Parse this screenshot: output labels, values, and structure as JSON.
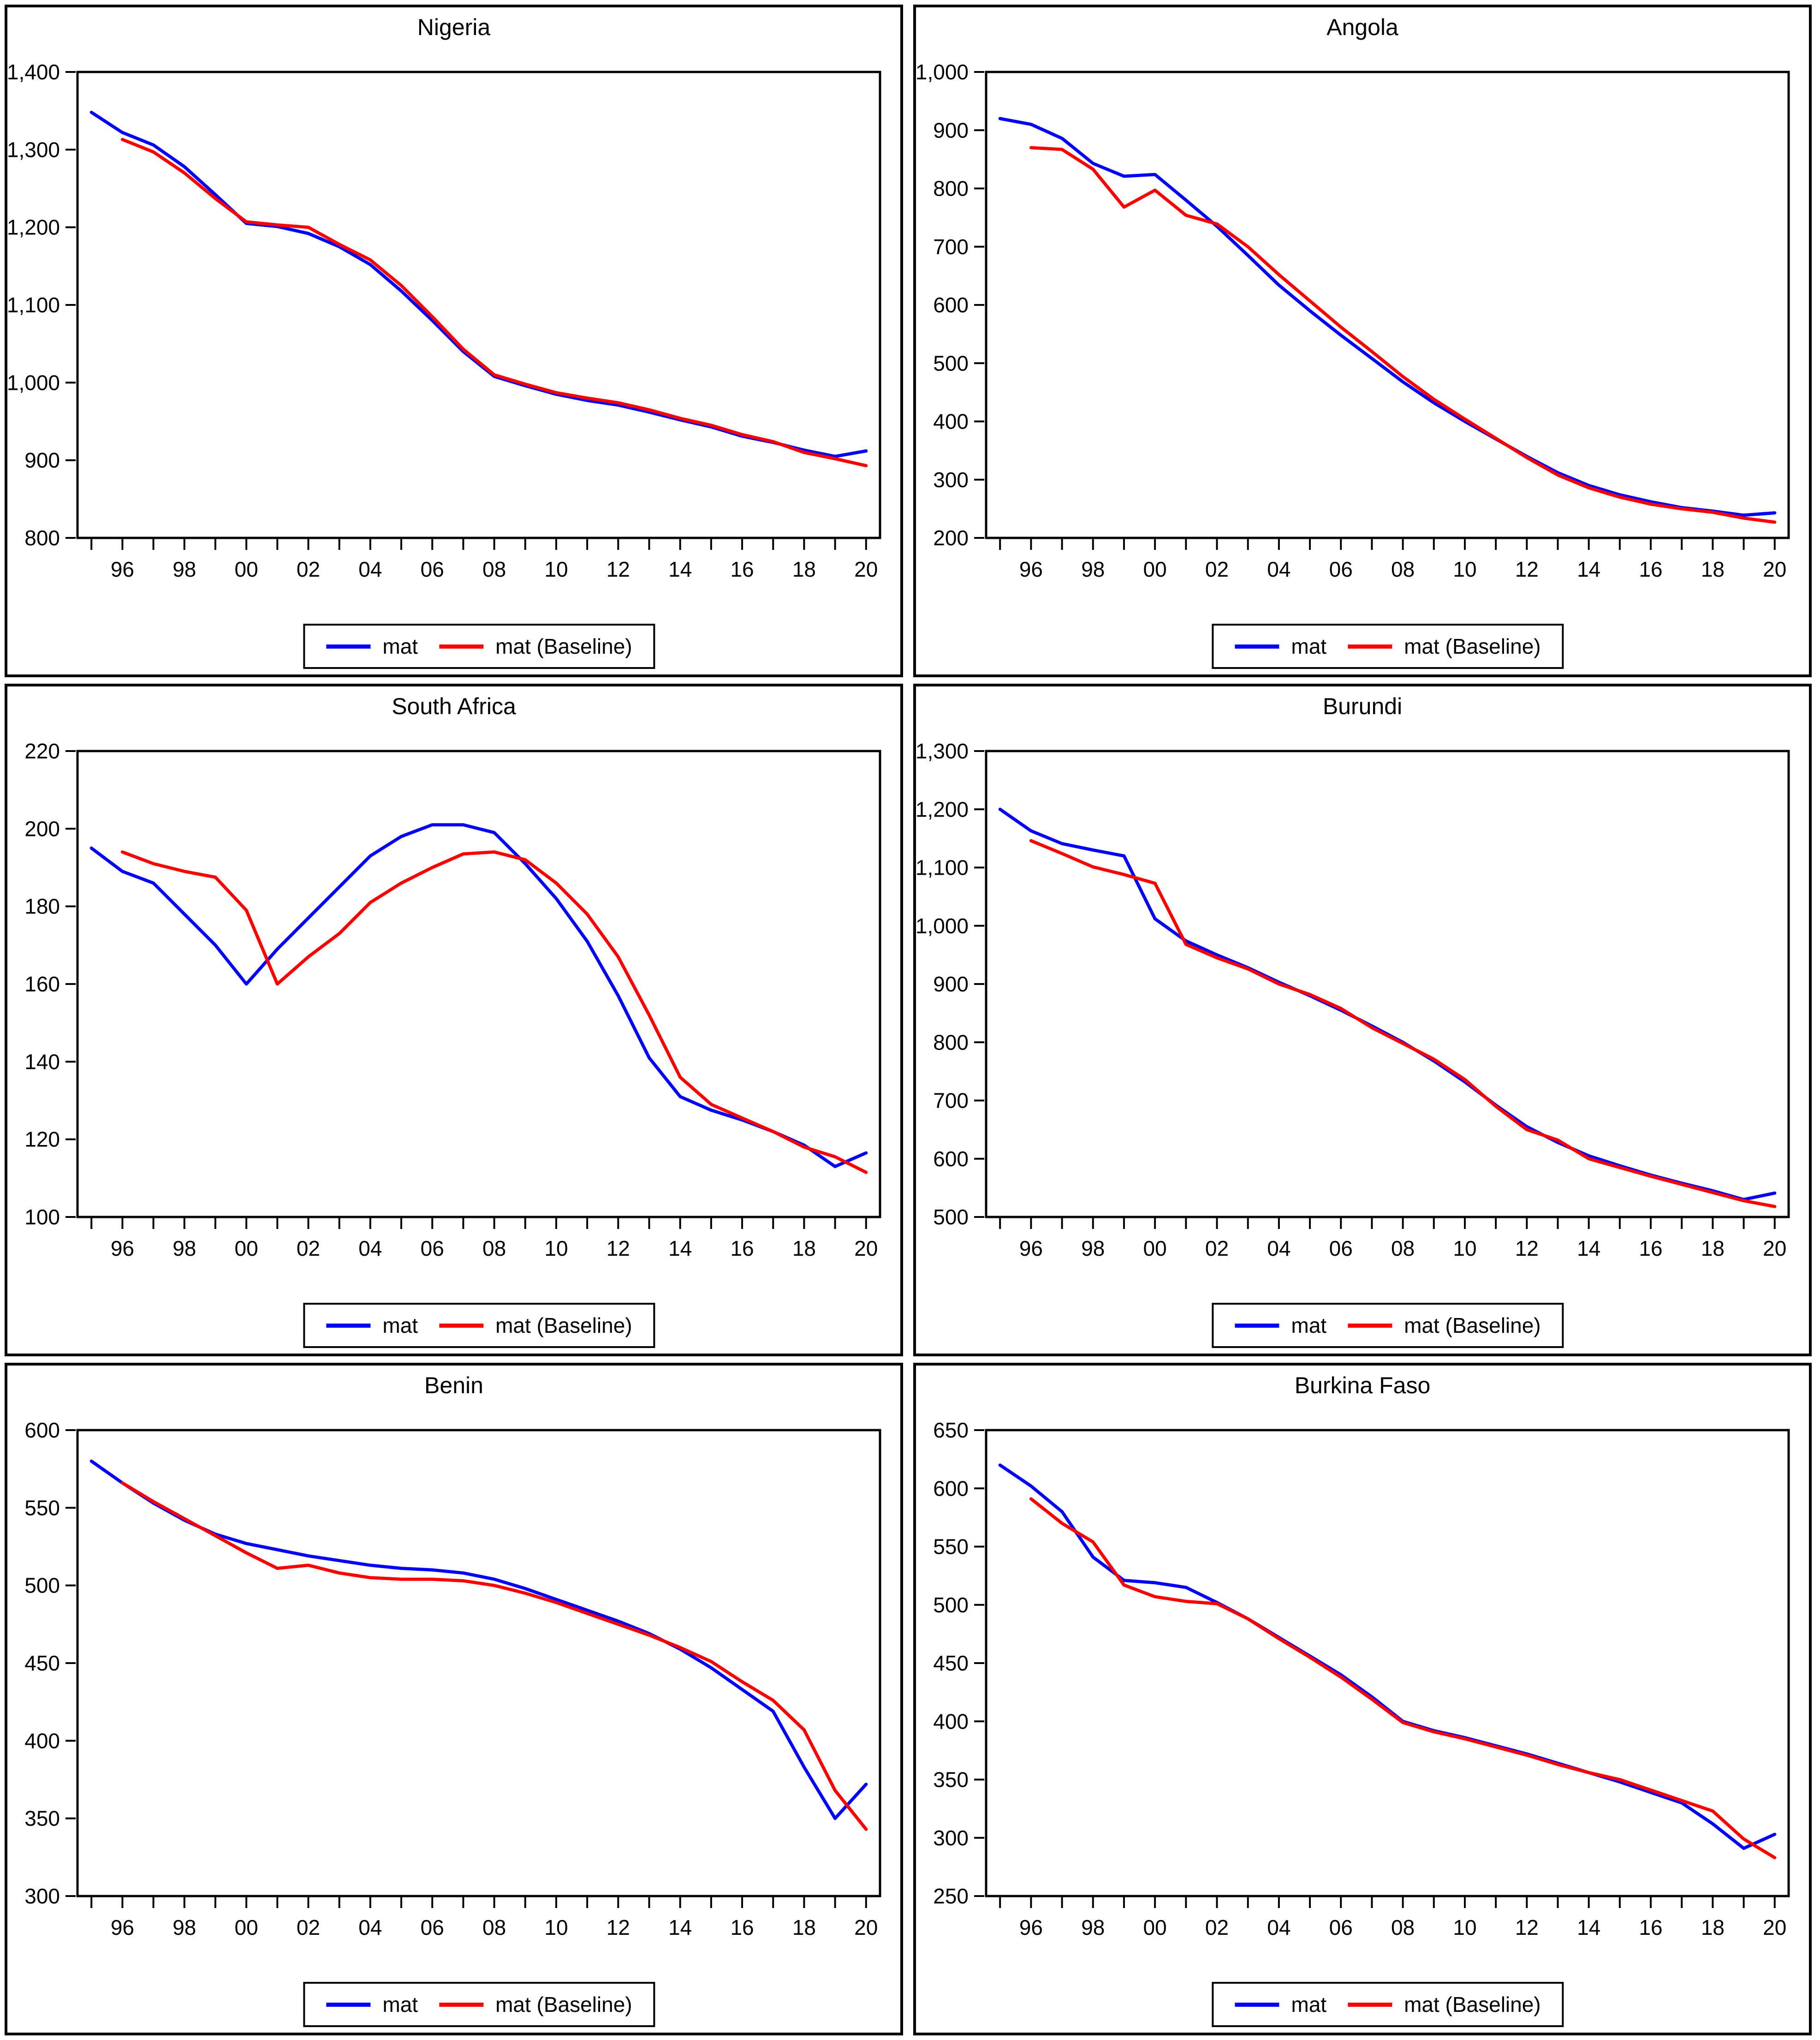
{
  "colors": {
    "mat": "#0000ff",
    "baseline": "#ff0000",
    "axis": "#000000",
    "background": "#ffffff"
  },
  "x_axis": {
    "start_year": 1995,
    "end_year": 2020,
    "range": [
      1994.55,
      2020.45
    ],
    "labeled_years": [
      1996,
      1998,
      2000,
      2002,
      2004,
      2006,
      2008,
      2010,
      2012,
      2014,
      2016,
      2018,
      2020
    ],
    "tick_labels": [
      "96",
      "98",
      "00",
      "02",
      "04",
      "06",
      "08",
      "10",
      "12",
      "14",
      "16",
      "18",
      "20"
    ]
  },
  "chart_data": [
    {
      "type": "line",
      "title": "Nigeria",
      "ylim": [
        800,
        1400
      ],
      "ystep": 100,
      "ytick_labels": [
        "1,400",
        "1,300",
        "1,200",
        "1,100",
        "1,000",
        "900",
        "800"
      ],
      "legend_position": "bottom-center",
      "grid": false,
      "series": [
        {
          "name": "mat",
          "color": "#0000ff",
          "start_year": 1995,
          "values": [
            1348,
            1322,
            1306,
            1278,
            1242,
            1205,
            1201,
            1192,
            1175,
            1152,
            1118,
            1080,
            1040,
            1008,
            996,
            985,
            977,
            971,
            962,
            952,
            943,
            931,
            923,
            913,
            905,
            912
          ]
        },
        {
          "name": "mat (Baseline)",
          "color": "#ff0000",
          "start_year": 1996,
          "values": [
            1313,
            1297,
            1270,
            1237,
            1207,
            1203,
            1200,
            1178,
            1158,
            1125,
            1085,
            1043,
            1010,
            998,
            987,
            980,
            974,
            965,
            954,
            945,
            933,
            924,
            910,
            902,
            893
          ]
        }
      ]
    },
    {
      "type": "line",
      "title": "Angola",
      "ylim": [
        200,
        1000
      ],
      "ystep": 100,
      "ytick_labels": [
        "1,000",
        "900",
        "800",
        "700",
        "600",
        "500",
        "400",
        "300",
        "200"
      ],
      "legend_position": "bottom-center",
      "grid": false,
      "series": [
        {
          "name": "mat",
          "color": "#0000ff",
          "start_year": 1995,
          "values": [
            920,
            910,
            886,
            843,
            821,
            824,
            780,
            735,
            685,
            634,
            590,
            548,
            508,
            468,
            432,
            400,
            370,
            340,
            312,
            290,
            274,
            262,
            252,
            246,
            239,
            243
          ]
        },
        {
          "name": "mat (Baseline)",
          "color": "#ff0000",
          "start_year": 1996,
          "values": [
            870,
            867,
            833,
            768,
            797,
            754,
            739,
            700,
            652,
            607,
            562,
            520,
            477,
            438,
            404,
            371,
            338,
            308,
            286,
            270,
            258,
            250,
            244,
            234,
            227
          ]
        }
      ]
    },
    {
      "type": "line",
      "title": "South Africa",
      "ylim": [
        100,
        220
      ],
      "ystep": 20,
      "ytick_labels": [
        "220",
        "200",
        "180",
        "160",
        "140",
        "120",
        "100"
      ],
      "legend_position": "bottom-center",
      "grid": false,
      "series": [
        {
          "name": "mat",
          "color": "#0000ff",
          "start_year": 1995,
          "values": [
            195,
            189,
            186,
            178,
            170,
            160,
            169,
            177,
            185,
            193,
            198,
            201,
            201,
            199,
            191,
            182,
            171,
            157,
            141,
            131,
            127.5,
            125,
            122,
            118.5,
            113,
            116.5
          ]
        },
        {
          "name": "mat (Baseline)",
          "color": "#ff0000",
          "start_year": 1996,
          "values": [
            194,
            191,
            189,
            187.5,
            179,
            160,
            167,
            173,
            181,
            186,
            190,
            193.5,
            194,
            192,
            186,
            178,
            167,
            152,
            136,
            129,
            125.5,
            122,
            118,
            115.5,
            111.5
          ]
        }
      ]
    },
    {
      "type": "line",
      "title": "Burundi",
      "ylim": [
        500,
        1300
      ],
      "ystep": 100,
      "ytick_labels": [
        "1,300",
        "1,200",
        "1,100",
        "1,000",
        "900",
        "800",
        "700",
        "600",
        "500"
      ],
      "legend_position": "bottom-center",
      "grid": false,
      "series": [
        {
          "name": "mat",
          "color": "#0000ff",
          "start_year": 1995,
          "values": [
            1200,
            1163,
            1141,
            1130,
            1120,
            1012,
            974,
            950,
            928,
            903,
            880,
            855,
            828,
            800,
            768,
            732,
            692,
            655,
            628,
            605,
            588,
            572,
            558,
            545,
            530,
            541
          ]
        },
        {
          "name": "mat (Baseline)",
          "color": "#ff0000",
          "start_year": 1996,
          "values": [
            1146,
            1124,
            1101,
            1088,
            1073,
            968,
            945,
            926,
            900,
            882,
            858,
            825,
            798,
            771,
            736,
            690,
            650,
            632,
            600,
            585,
            570,
            556,
            542,
            528,
            518
          ]
        }
      ]
    },
    {
      "type": "line",
      "title": "Benin",
      "ylim": [
        300,
        600
      ],
      "ystep": 50,
      "ytick_labels": [
        "600",
        "550",
        "500",
        "450",
        "400",
        "350",
        "300"
      ],
      "legend_position": "bottom-center",
      "grid": false,
      "series": [
        {
          "name": "mat",
          "color": "#0000ff",
          "start_year": 1995,
          "values": [
            580,
            566,
            553,
            542,
            533,
            527,
            523,
            519,
            516,
            513,
            511,
            510,
            508,
            504,
            498,
            491,
            484,
            477,
            469,
            459,
            447,
            433,
            419,
            383,
            350,
            372
          ]
        },
        {
          "name": "mat (Baseline)",
          "color": "#ff0000",
          "start_year": 1996,
          "values": [
            566,
            554,
            543,
            532,
            521,
            511,
            513,
            508,
            505,
            504,
            504,
            503,
            500,
            495,
            489,
            482,
            475,
            468,
            460,
            451,
            438,
            426,
            407,
            368,
            343
          ]
        }
      ]
    },
    {
      "type": "line",
      "title": "Burkina Faso",
      "ylim": [
        250,
        650
      ],
      "ystep": 50,
      "ytick_labels": [
        "650",
        "600",
        "550",
        "500",
        "450",
        "400",
        "350",
        "300",
        "250"
      ],
      "legend_position": "bottom-center",
      "grid": false,
      "series": [
        {
          "name": "mat",
          "color": "#0000ff",
          "start_year": 1995,
          "values": [
            620,
            602,
            580,
            541,
            521,
            519,
            515,
            502,
            488,
            472,
            456,
            440,
            421,
            400,
            392,
            386,
            379,
            372,
            364,
            356,
            348,
            339,
            330,
            312,
            291,
            303
          ]
        },
        {
          "name": "mat (Baseline)",
          "color": "#ff0000",
          "start_year": 1996,
          "values": [
            591,
            570,
            554,
            517,
            507,
            503,
            501,
            488,
            471,
            455,
            438,
            419,
            399,
            391,
            385,
            378,
            371,
            363,
            356,
            350,
            341,
            332,
            323,
            299,
            283
          ]
        }
      ]
    }
  ]
}
